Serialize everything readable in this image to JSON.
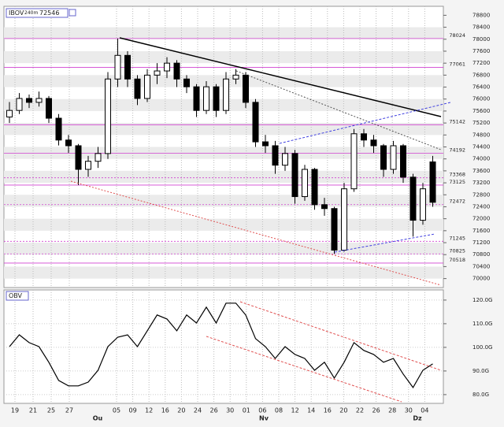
{
  "chart_data": [
    {
      "type": "candlestick",
      "title": "IBOV",
      "subtitle": "240m",
      "last": 72546,
      "open": [
        75400,
        75620,
        76020,
        75890,
        76020,
        75360,
        74630,
        74440,
        73650,
        73920,
        74180,
        76670,
        77460,
        76670,
        76020,
        76800,
        76940,
        77200,
        76670,
        76410,
        75620,
        76410,
        75620,
        76670,
        76800,
        75890,
        74570,
        74440,
        73790,
        74180,
        72740,
        73650,
        72470,
        72340,
        70950,
        73000,
        74840,
        74630,
        74440,
        73650,
        74440,
        73390,
        71950,
        73900
      ],
      "high": [
        75900,
        76200,
        76150,
        76250,
        76100,
        75500,
        74800,
        74500,
        74100,
        74400,
        76900,
        78024,
        77600,
        76800,
        77000,
        77200,
        77400,
        77300,
        76800,
        76500,
        76600,
        76500,
        76900,
        77000,
        76900,
        76000,
        74800,
        74600,
        74400,
        74300,
        73800,
        73700,
        72700,
        72400,
        73200,
        75000,
        75000,
        74800,
        74500,
        74600,
        74500,
        73500,
        73200,
        74100
      ],
      "low": [
        75200,
        75500,
        75700,
        75750,
        75200,
        74450,
        74200,
        73125,
        73400,
        73700,
        74000,
        76400,
        76400,
        75800,
        75900,
        76500,
        76700,
        76400,
        76200,
        75400,
        75500,
        75400,
        75500,
        76500,
        75700,
        74400,
        74200,
        73500,
        73600,
        72500,
        72600,
        72300,
        72100,
        70825,
        70900,
        72900,
        74400,
        74200,
        73400,
        73500,
        73200,
        71400,
        71800,
        72400
      ],
      "close": [
        75620,
        76020,
        75890,
        76020,
        75360,
        74630,
        74440,
        73650,
        73920,
        74180,
        76670,
        77460,
        76670,
        76020,
        76800,
        76940,
        77200,
        76670,
        76410,
        75620,
        76410,
        75620,
        76670,
        76800,
        75890,
        74570,
        74440,
        73790,
        74180,
        72740,
        73650,
        72470,
        72340,
        70950,
        73000,
        74840,
        74630,
        74440,
        73650,
        74440,
        73390,
        71950,
        73000,
        72550
      ],
      "ylim": [
        69700,
        79100
      ],
      "yticks": [
        70000,
        70400,
        70800,
        71200,
        71600,
        72000,
        72400,
        72800,
        73200,
        73600,
        74000,
        74400,
        74800,
        75200,
        75600,
        76000,
        76400,
        76800,
        77200,
        77600,
        78000,
        78400,
        78800
      ],
      "levels": [
        78024,
        77061,
        75142,
        74192,
        73368,
        73125,
        72472,
        71245,
        70825,
        70518
      ],
      "level_styles": [
        "solid",
        "solid",
        "solid",
        "solid",
        "dotted",
        "solid",
        "dotted",
        "dotted",
        "dotted",
        "solid"
      ],
      "level_color": "#d040d0",
      "up_color": "#ffffff",
      "down_color": "#000000",
      "grid": true
    },
    {
      "type": "line",
      "title": "OBV",
      "color": "#000000",
      "values": [
        100.3,
        105.3,
        102.0,
        100.3,
        93.7,
        86.0,
        83.7,
        83.7,
        85.3,
        90.3,
        100.3,
        104.3,
        105.3,
        100.3,
        107.0,
        113.7,
        112.0,
        107.0,
        113.7,
        110.3,
        117.0,
        110.3,
        118.7,
        118.7,
        113.7,
        103.7,
        100.3,
        95.3,
        100.3,
        97.0,
        95.3,
        90.3,
        93.7,
        87.0,
        93.7,
        102.0,
        98.7,
        97.0,
        93.7,
        95.3,
        88.7,
        83.0,
        90.3,
        93.0
      ],
      "ylim": [
        76.3,
        124.3
      ],
      "yticks": [
        {
          "value": 80,
          "label": "80.0G"
        },
        {
          "value": 90,
          "label": "90.0G"
        },
        {
          "value": 100,
          "label": "100.0G"
        },
        {
          "value": 110,
          "label": "110.0G"
        },
        {
          "value": 120,
          "label": "120.0G"
        }
      ],
      "grid": true
    }
  ],
  "x_labels": [
    "19",
    "21",
    "25",
    "27",
    "05",
    "09",
    "12",
    "16",
    "20",
    "24",
    "26",
    "30",
    "01",
    "06",
    "08",
    "12",
    "14",
    "16",
    "20",
    "22",
    "26",
    "28",
    "30",
    "04"
  ],
  "months": [
    "Ou",
    "Nv",
    "Dz"
  ]
}
